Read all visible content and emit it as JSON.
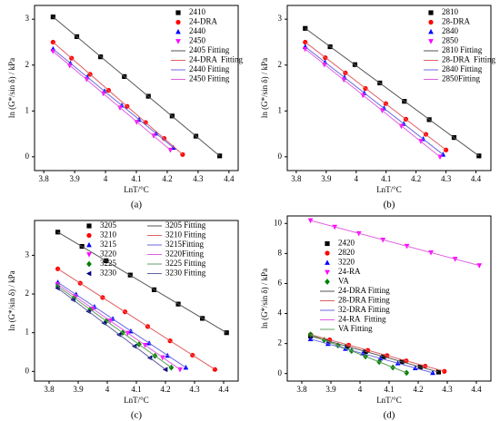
{
  "chart_data": [
    {
      "type": "scatter",
      "caption": "(a)",
      "x_label": "LnT/°C",
      "y_label": "ln (G*/sin δ) / kPa",
      "xlim": [
        3.77,
        4.43
      ],
      "xticks": [
        3.8,
        3.9,
        4.0,
        4.1,
        4.2,
        4.3,
        4.4
      ],
      "ylim": [
        -0.3,
        3.3
      ],
      "yticks": [
        0,
        1,
        2,
        3
      ],
      "legend": "upper right",
      "legend_columns": 1,
      "series": [
        {
          "name": "2410",
          "color": "#000000",
          "marker": "square",
          "x": [
            3.83,
            3.907,
            3.984,
            4.061,
            4.139,
            4.216,
            4.293,
            4.37
          ],
          "values": [
            3.05,
            2.62,
            2.18,
            1.75,
            1.32,
            0.89,
            0.45,
            0.02
          ]
        },
        {
          "name": "24-DRA",
          "color": "#ff0000",
          "marker": "circle",
          "x": [
            3.83,
            3.89,
            3.95,
            4.01,
            4.07,
            4.13,
            4.19,
            4.25
          ],
          "values": [
            2.5,
            2.15,
            1.8,
            1.45,
            1.1,
            0.75,
            0.4,
            0.05
          ]
        },
        {
          "name": "2440",
          "color": "#0000ff",
          "marker": "triangle",
          "x": [
            3.83,
            3.886,
            3.941,
            3.997,
            4.053,
            4.109,
            4.164,
            4.22
          ],
          "values": [
            2.35,
            2.04,
            1.74,
            1.43,
            1.12,
            0.81,
            0.51,
            0.2
          ]
        },
        {
          "name": "2450",
          "color": "#ff00ff",
          "marker": "triangle-down",
          "x": [
            3.83,
            3.884,
            3.939,
            3.993,
            4.047,
            4.101,
            4.156,
            4.21
          ],
          "values": [
            2.3,
            1.99,
            1.69,
            1.38,
            1.07,
            0.76,
            0.46,
            0.15
          ]
        },
        {
          "name": "2405 Fitting",
          "color": "#555555",
          "marker": "line",
          "x": [
            3.83,
            4.37
          ],
          "values": [
            3.05,
            0.02
          ]
        },
        {
          "name": "24-DRA  Fitting",
          "color": "#e06060",
          "marker": "line",
          "x": [
            3.83,
            4.25
          ],
          "values": [
            2.5,
            0.05
          ]
        },
        {
          "name": "2440 Fitting",
          "color": "#6a6ae0",
          "marker": "line",
          "x": [
            3.83,
            4.22
          ],
          "values": [
            2.35,
            0.2
          ]
        },
        {
          "name": "2450 Fitting",
          "color": "#e060e0",
          "marker": "line",
          "x": [
            3.83,
            4.21
          ],
          "values": [
            2.3,
            0.15
          ]
        }
      ]
    },
    {
      "type": "scatter",
      "caption": "(b)",
      "x_label": "LnT/°C",
      "y_label": "ln (G*/sin δ) / kPa",
      "xlim": [
        3.77,
        4.45
      ],
      "xticks": [
        3.8,
        3.9,
        4.0,
        4.1,
        4.2,
        4.3,
        4.4
      ],
      "ylim": [
        -0.3,
        3.3
      ],
      "yticks": [
        0,
        1,
        2,
        3
      ],
      "legend": "upper right",
      "legend_columns": 1,
      "series": [
        {
          "name": "2810",
          "color": "#000000",
          "marker": "square",
          "x": [
            3.83,
            3.913,
            3.996,
            4.079,
            4.161,
            4.244,
            4.327,
            4.41
          ],
          "values": [
            2.8,
            2.4,
            2.01,
            1.61,
            1.21,
            0.81,
            0.42,
            0.02
          ]
        },
        {
          "name": "28-DRA",
          "color": "#ff0000",
          "marker": "circle",
          "x": [
            3.83,
            3.897,
            3.964,
            4.031,
            4.099,
            4.166,
            4.233,
            4.3
          ],
          "values": [
            2.5,
            2.16,
            1.83,
            1.49,
            1.16,
            0.82,
            0.49,
            0.15
          ]
        },
        {
          "name": "2840",
          "color": "#0000ff",
          "marker": "triangle",
          "x": [
            3.83,
            3.896,
            3.961,
            4.027,
            4.093,
            4.159,
            4.224,
            4.29
          ],
          "values": [
            2.4,
            2.06,
            1.73,
            1.39,
            1.06,
            0.72,
            0.39,
            0.05
          ]
        },
        {
          "name": "2850",
          "color": "#ff00ff",
          "marker": "triangle-down",
          "x": [
            3.83,
            3.894,
            3.959,
            4.023,
            4.087,
            4.151,
            4.216,
            4.28
          ],
          "values": [
            2.35,
            2.01,
            1.68,
            1.34,
            1.01,
            0.67,
            0.34,
            0
          ]
        },
        {
          "name": "2810 Fitting",
          "color": "#555555",
          "marker": "line",
          "x": [
            3.83,
            4.41
          ],
          "values": [
            2.8,
            0.02
          ]
        },
        {
          "name": "28-DRA  Fitting",
          "color": "#e06060",
          "marker": "line",
          "x": [
            3.83,
            4.3
          ],
          "values": [
            2.5,
            0.15
          ]
        },
        {
          "name": "2840 Fitting",
          "color": "#6a6ae0",
          "marker": "line",
          "x": [
            3.83,
            4.29
          ],
          "values": [
            2.4,
            0.05
          ]
        },
        {
          "name": "2850Fitting",
          "color": "#e060e0",
          "marker": "line",
          "x": [
            3.83,
            4.28
          ],
          "values": [
            2.35,
            0
          ]
        }
      ]
    },
    {
      "type": "scatter",
      "caption": "(c)",
      "x_label": "LnT/°C",
      "y_label": "ln (G*/sin δ) / kPa",
      "xlim": [
        3.75,
        4.45
      ],
      "xticks": [
        3.8,
        3.9,
        4.0,
        4.1,
        4.2,
        4.3,
        4.4
      ],
      "ylim": [
        -0.25,
        3.9
      ],
      "yticks": [
        0,
        1,
        2,
        3
      ],
      "legend": "upper center",
      "legend_columns": 2,
      "series": [
        {
          "name": "3205",
          "color": "#000000",
          "marker": "square",
          "x": [
            3.83,
            3.913,
            3.996,
            4.079,
            4.161,
            4.244,
            4.327,
            4.41
          ],
          "values": [
            3.6,
            3.23,
            2.86,
            2.49,
            2.11,
            1.74,
            1.37,
            1.0
          ]
        },
        {
          "name": "3210",
          "color": "#ff0000",
          "marker": "circle",
          "x": [
            3.83,
            3.907,
            3.984,
            4.061,
            4.139,
            4.216,
            4.293,
            4.37
          ],
          "values": [
            2.65,
            2.28,
            1.91,
            1.54,
            1.16,
            0.79,
            0.42,
            0.05
          ]
        },
        {
          "name": "3215",
          "color": "#0000ff",
          "marker": "triangle",
          "x": [
            3.83,
            3.893,
            3.956,
            4.019,
            4.081,
            4.144,
            4.207,
            4.27
          ],
          "values": [
            2.3,
            1.99,
            1.67,
            1.36,
            1.04,
            0.73,
            0.41,
            0.1
          ]
        },
        {
          "name": "3220",
          "color": "#ff00ff",
          "marker": "triangle-down",
          "x": [
            3.83,
            3.89,
            3.95,
            4.01,
            4.07,
            4.13,
            4.19,
            4.25
          ],
          "values": [
            2.25,
            1.94,
            1.62,
            1.31,
            0.99,
            0.68,
            0.36,
            0.05
          ]
        },
        {
          "name": "3225",
          "color": "#008000",
          "marker": "diamond",
          "x": [
            3.83,
            3.886,
            3.941,
            3.997,
            4.053,
            4.109,
            4.164,
            4.22
          ],
          "values": [
            2.2,
            1.9,
            1.6,
            1.3,
            1.0,
            0.7,
            0.4,
            0.1
          ]
        },
        {
          "name": "3230",
          "color": "#000080",
          "marker": "triangle-left",
          "x": [
            3.83,
            3.883,
            3.936,
            3.989,
            4.041,
            4.094,
            4.147,
            4.2
          ],
          "values": [
            2.15,
            1.85,
            1.55,
            1.25,
            0.95,
            0.65,
            0.35,
            0.05
          ]
        },
        {
          "name": "3205 Fitting",
          "color": "#555555",
          "marker": "line",
          "x": [
            3.83,
            4.41
          ],
          "values": [
            3.6,
            1.0
          ]
        },
        {
          "name": "3210 Fitting",
          "color": "#e06060",
          "marker": "line",
          "x": [
            3.83,
            4.37
          ],
          "values": [
            2.65,
            0.05
          ]
        },
        {
          "name": "3215Fitting",
          "color": "#6a6ae0",
          "marker": "line",
          "x": [
            3.83,
            4.27
          ],
          "values": [
            2.3,
            0.1
          ]
        },
        {
          "name": "3220Fitting",
          "color": "#e060e0",
          "marker": "line",
          "x": [
            3.83,
            4.25
          ],
          "values": [
            2.25,
            0.05
          ]
        },
        {
          "name": "3225 Fitting",
          "color": "#60a060",
          "marker": "line",
          "x": [
            3.83,
            4.22
          ],
          "values": [
            2.2,
            0.1
          ]
        },
        {
          "name": "3230 Fitting",
          "color": "#6060a0",
          "marker": "line",
          "x": [
            3.83,
            4.2
          ],
          "values": [
            2.15,
            0.05
          ]
        }
      ]
    },
    {
      "type": "scatter",
      "caption": "(d)",
      "x_label": "LnT/°C",
      "y_label": "ln (G*/sin δ) / kPa",
      "xlim": [
        3.75,
        4.45
      ],
      "xticks": [
        3.8,
        3.9,
        4.0,
        4.1,
        4.2,
        4.3,
        4.4
      ],
      "ylim": [
        -0.5,
        10.5
      ],
      "yticks": [
        0,
        2,
        4,
        6,
        8,
        10
      ],
      "legend": "center left",
      "legend_columns": 1,
      "series": [
        {
          "name": "2420",
          "color": "#000000",
          "marker": "square",
          "x": [
            3.83,
            3.893,
            3.956,
            4.019,
            4.081,
            4.144,
            4.207,
            4.27
          ],
          "values": [
            2.5,
            2.16,
            1.81,
            1.47,
            1.13,
            0.79,
            0.44,
            0.1
          ]
        },
        {
          "name": "2820",
          "color": "#ff0000",
          "marker": "circle",
          "x": [
            3.83,
            3.896,
            3.961,
            4.027,
            4.093,
            4.159,
            4.224,
            4.29
          ],
          "values": [
            2.6,
            2.25,
            1.9,
            1.55,
            1.2,
            0.85,
            0.5,
            0.15
          ]
        },
        {
          "name": "3220",
          "color": "#0000ff",
          "marker": "triangle",
          "x": [
            3.83,
            3.89,
            3.95,
            4.01,
            4.07,
            4.13,
            4.19,
            4.25
          ],
          "values": [
            2.3,
            1.98,
            1.66,
            1.34,
            1.01,
            0.69,
            0.37,
            0.05
          ]
        },
        {
          "name": "24-RA",
          "color": "#ff00ff",
          "marker": "triangle-down",
          "x": [
            3.83,
            3.913,
            3.996,
            4.079,
            4.161,
            4.244,
            4.327,
            4.41
          ],
          "values": [
            10.2,
            9.77,
            9.34,
            8.91,
            8.49,
            8.06,
            7.63,
            7.2
          ]
        },
        {
          "name": "VA",
          "color": "#008000",
          "marker": "diamond",
          "x": [
            3.83,
            3.877,
            3.924,
            3.971,
            4.019,
            4.066,
            4.113,
            4.16
          ],
          "values": [
            2.6,
            2.24,
            1.87,
            1.51,
            1.14,
            0.78,
            0.41,
            0.05
          ]
        },
        {
          "name": "24-DRA Fitting",
          "color": "#555555",
          "marker": "line",
          "x": [
            3.83,
            4.27
          ],
          "values": [
            2.5,
            0.1
          ]
        },
        {
          "name": "28-DRA Fitting",
          "color": "#e06060",
          "marker": "line",
          "x": [
            3.83,
            4.29
          ],
          "values": [
            2.6,
            0.15
          ]
        },
        {
          "name": "32-DRA Fitting",
          "color": "#6a6ae0",
          "marker": "line",
          "x": [
            3.83,
            4.25
          ],
          "values": [
            2.3,
            0.05
          ]
        },
        {
          "name": "24-RA  Fitting",
          "color": "#e060e0",
          "marker": "line",
          "x": [
            3.83,
            4.41
          ],
          "values": [
            10.2,
            7.2
          ]
        },
        {
          "name": "VA Fitting",
          "color": "#60a060",
          "marker": "line",
          "x": [
            3.83,
            4.16
          ],
          "values": [
            2.6,
            0.05
          ]
        }
      ]
    }
  ]
}
